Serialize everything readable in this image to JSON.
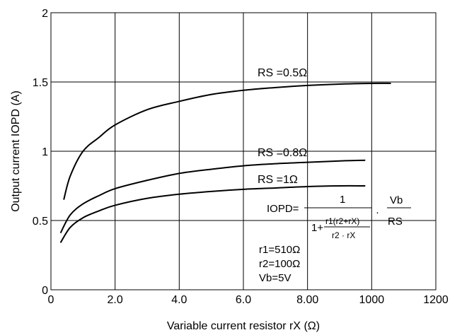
{
  "chart_data": {
    "type": "line",
    "xlabel": "Variable current resistor rX (Ω)",
    "ylabel": "Output current IOPD (A)",
    "xlim": [
      0,
      1200
    ],
    "ylim": [
      0,
      2
    ],
    "x_ticks": [
      "0",
      "2.0",
      "4.0",
      "6.0",
      "8.00",
      "1000",
      "1200"
    ],
    "y_ticks": [
      "0",
      "0.5",
      "1",
      "1.5",
      "2"
    ],
    "grid": true,
    "series": [
      {
        "name": "RS =0.5Ω",
        "x": [
          40,
          60,
          100,
          150,
          200,
          300,
          400,
          500,
          600,
          700,
          800,
          900,
          1000,
          1060
        ],
        "y": [
          0.65,
          0.82,
          1.0,
          1.1,
          1.19,
          1.3,
          1.36,
          1.41,
          1.44,
          1.46,
          1.475,
          1.485,
          1.49,
          1.49
        ]
      },
      {
        "name": "RS =0.8Ω",
        "x": [
          30,
          60,
          100,
          150,
          200,
          300,
          400,
          500,
          600,
          700,
          800,
          900,
          980
        ],
        "y": [
          0.41,
          0.54,
          0.62,
          0.68,
          0.73,
          0.79,
          0.84,
          0.87,
          0.895,
          0.91,
          0.92,
          0.93,
          0.935
        ]
      },
      {
        "name": "RS =1Ω",
        "x": [
          30,
          60,
          100,
          150,
          200,
          300,
          400,
          500,
          600,
          700,
          800,
          900,
          980
        ],
        "y": [
          0.34,
          0.45,
          0.52,
          0.57,
          0.61,
          0.66,
          0.69,
          0.71,
          0.725,
          0.735,
          0.745,
          0.75,
          0.75
        ]
      }
    ],
    "annotations": {
      "formula_lhs": "IOPD=",
      "formula_num": "1",
      "formula_den_prefix": "1+",
      "formula_inner_num": "r1(r2+rX)",
      "formula_inner_den": "r2 · rX",
      "formula_dot": "·",
      "formula_vb": "Vb",
      "formula_rs": "RS",
      "params": [
        "r1=510Ω",
        "r2=100Ω",
        "Vb=5V"
      ]
    }
  }
}
